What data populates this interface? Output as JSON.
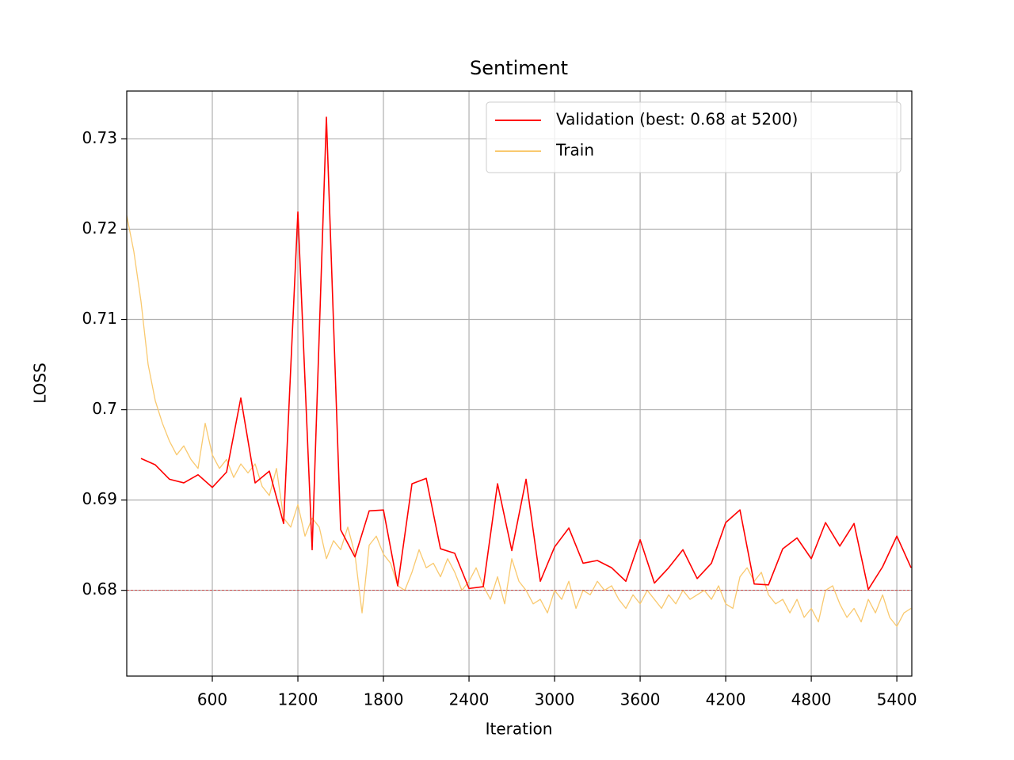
{
  "chart_data": {
    "type": "line",
    "title": "Sentiment",
    "x_label": "Iteration",
    "y_label": "LOSS",
    "xlim": [
      0,
      5505
    ],
    "ylim": [
      0.6705,
      0.7353
    ],
    "xticks": [
      600,
      1200,
      1800,
      2400,
      3000,
      3600,
      4200,
      4800,
      5400
    ],
    "yticks": [
      0.68,
      0.69,
      0.7,
      0.71,
      0.72,
      0.73
    ],
    "grid": true,
    "legend": "upper right",
    "hline": {
      "value": 0.68,
      "color": "#d62728",
      "style": "dashed"
    },
    "series": [
      {
        "name": "Validation (best: 0.68 at 5200)",
        "color": "#ff0000",
        "x": [
          100,
          200,
          300,
          400,
          500,
          600,
          700,
          800,
          900,
          1000,
          1100,
          1200,
          1300,
          1400,
          1500,
          1600,
          1700,
          1800,
          1900,
          2000,
          2100,
          2200,
          2300,
          2400,
          2500,
          2600,
          2700,
          2800,
          2900,
          3000,
          3100,
          3200,
          3300,
          3400,
          3500,
          3600,
          3700,
          3800,
          3900,
          4000,
          4100,
          4200,
          4300,
          4400,
          4500,
          4600,
          4700,
          4800,
          4900,
          5000,
          5100,
          5200,
          5300,
          5400,
          5500
        ],
        "values": [
          0.6946,
          0.6939,
          0.6923,
          0.6919,
          0.6928,
          0.6914,
          0.6931,
          0.7013,
          0.6919,
          0.6932,
          0.6874,
          0.7219,
          0.6845,
          0.7324,
          0.6867,
          0.6837,
          0.6888,
          0.6889,
          0.6805,
          0.6918,
          0.6924,
          0.6846,
          0.6841,
          0.6802,
          0.6804,
          0.6918,
          0.6844,
          0.6923,
          0.681,
          0.6848,
          0.6869,
          0.683,
          0.6833,
          0.6825,
          0.681,
          0.6856,
          0.6808,
          0.6825,
          0.6845,
          0.6813,
          0.683,
          0.6875,
          0.6889,
          0.6807,
          0.6806,
          0.6846,
          0.6858,
          0.6835,
          0.6875,
          0.6849,
          0.6874,
          0.6801,
          0.6826,
          0.686,
          0.6825
        ]
      },
      {
        "name": "Train",
        "color": "#f9c96f",
        "x": [
          0,
          50,
          100,
          150,
          200,
          250,
          300,
          350,
          400,
          450,
          500,
          550,
          600,
          650,
          700,
          750,
          800,
          850,
          900,
          950,
          1000,
          1050,
          1100,
          1150,
          1200,
          1250,
          1300,
          1350,
          1400,
          1450,
          1500,
          1550,
          1600,
          1650,
          1700,
          1750,
          1800,
          1850,
          1900,
          1950,
          2000,
          2050,
          2100,
          2150,
          2200,
          2250,
          2300,
          2350,
          2400,
          2450,
          2500,
          2550,
          2600,
          2650,
          2700,
          2750,
          2800,
          2850,
          2900,
          2950,
          3000,
          3050,
          3100,
          3150,
          3200,
          3250,
          3300,
          3350,
          3400,
          3450,
          3500,
          3550,
          3600,
          3650,
          3700,
          3750,
          3800,
          3850,
          3900,
          3950,
          4000,
          4050,
          4100,
          4150,
          4200,
          4250,
          4300,
          4350,
          4400,
          4450,
          4500,
          4550,
          4600,
          4650,
          4700,
          4750,
          4800,
          4850,
          4900,
          4950,
          5000,
          5050,
          5100,
          5150,
          5200,
          5250,
          5300,
          5350,
          5400,
          5450,
          5500
        ],
        "values": [
          0.7215,
          0.7175,
          0.712,
          0.705,
          0.701,
          0.6985,
          0.6965,
          0.695,
          0.696,
          0.6945,
          0.6935,
          0.6985,
          0.695,
          0.6935,
          0.6945,
          0.6925,
          0.694,
          0.693,
          0.694,
          0.6915,
          0.6905,
          0.6935,
          0.688,
          0.687,
          0.6895,
          0.686,
          0.688,
          0.687,
          0.6835,
          0.6855,
          0.6845,
          0.687,
          0.684,
          0.6775,
          0.685,
          0.686,
          0.684,
          0.683,
          0.6805,
          0.68,
          0.682,
          0.6845,
          0.6825,
          0.683,
          0.6815,
          0.6835,
          0.682,
          0.68,
          0.681,
          0.6825,
          0.6805,
          0.679,
          0.6815,
          0.6785,
          0.6835,
          0.681,
          0.68,
          0.6785,
          0.679,
          0.6775,
          0.68,
          0.679,
          0.681,
          0.678,
          0.68,
          0.6795,
          0.681,
          0.68,
          0.6805,
          0.679,
          0.678,
          0.6795,
          0.6785,
          0.68,
          0.679,
          0.678,
          0.6795,
          0.6785,
          0.68,
          0.679,
          0.6795,
          0.68,
          0.679,
          0.6805,
          0.6785,
          0.678,
          0.6815,
          0.6825,
          0.681,
          0.682,
          0.6795,
          0.6785,
          0.679,
          0.6775,
          0.679,
          0.677,
          0.678,
          0.6765,
          0.68,
          0.6805,
          0.6785,
          0.677,
          0.678,
          0.6765,
          0.679,
          0.6775,
          0.6795,
          0.677,
          0.676,
          0.6775,
          0.678
        ]
      }
    ]
  }
}
